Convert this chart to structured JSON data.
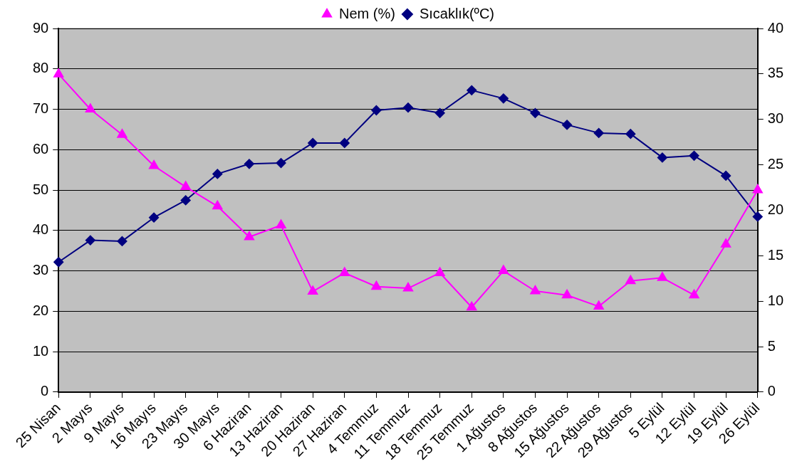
{
  "chart_data": {
    "type": "line",
    "categories": [
      "25 Nisan",
      "2 Mayıs",
      "9 Mayıs",
      "16 Mayıs",
      "23 Mayıs",
      "30 Mayıs",
      "6 Haziran",
      "13 Haziran",
      "20 Haziran",
      "27 Haziran",
      "4 Temmuz",
      "11 Temmuz",
      "18 Temmuz",
      "25 Temmuz",
      "1 Ağustos",
      "8 Ağustos",
      "15 Ağustos",
      "22 Ağustos",
      "29 Ağustos",
      "5 Eylül",
      "12 Eylül",
      "19 Eylül",
      "26 Eylül"
    ],
    "series": [
      {
        "name": "Nem (%)",
        "color": "#ff00ff",
        "marker": "triangle",
        "values": [
          78.7,
          70,
          63.7,
          56,
          50.8,
          46,
          38.4,
          41.3,
          24.9,
          29.5,
          26.1,
          25.7,
          29.5,
          21,
          30,
          25,
          24,
          21.2,
          27.5,
          28.3,
          24,
          36.6,
          50
        ]
      },
      {
        "name": "Sıcaklık(ºC)",
        "color": "#000080",
        "marker": "diamond",
        "axis": "y2",
        "values": [
          14.3,
          16.7,
          16.6,
          19.2,
          21.1,
          24,
          25.1,
          25.2,
          27.4,
          27.4,
          31,
          31.3,
          30.7,
          33.2,
          32.3,
          30.7,
          29.4,
          28.5,
          28.4,
          25.8,
          26,
          23.8,
          19.3
        ]
      }
    ],
    "ylim": [
      0,
      90
    ],
    "yticks": [
      0,
      10,
      20,
      30,
      40,
      50,
      60,
      70,
      80,
      90
    ],
    "y2lim": [
      0,
      40
    ],
    "y2ticks": [
      0,
      5,
      10,
      15,
      20,
      25,
      30,
      35,
      40
    ],
    "grid": "y",
    "legend": "top",
    "line_style": "solid"
  }
}
